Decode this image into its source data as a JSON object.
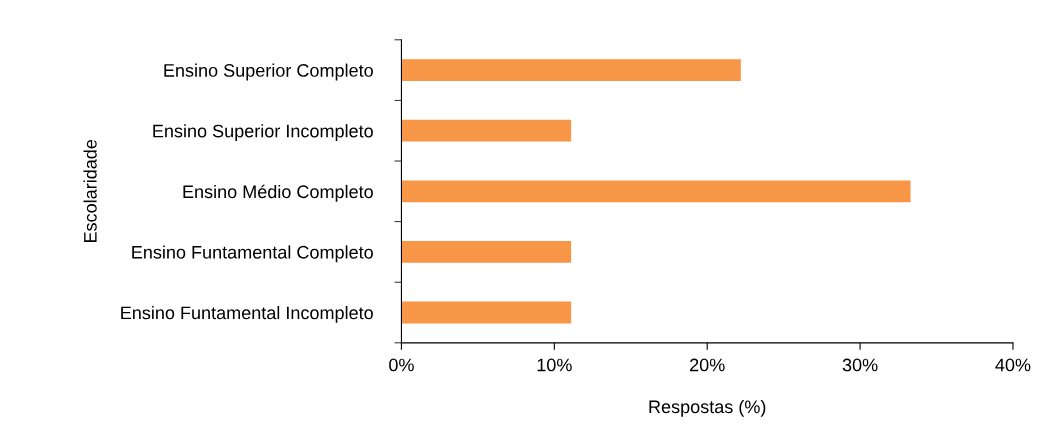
{
  "chart_data": {
    "type": "bar",
    "orientation": "horizontal",
    "categories": [
      "Ensino Superior Completo",
      "Ensino Superior Incompleto",
      "Ensino Médio Completo",
      "Ensino Funtamental Completo",
      "Ensino Funtamental Incompleto"
    ],
    "values": [
      22.2,
      11.1,
      33.3,
      11.1,
      11.1
    ],
    "color": "#f79646",
    "xlim": [
      0,
      40
    ],
    "xticks": [
      {
        "value": 0,
        "label": "0%"
      },
      {
        "value": 10,
        "label": "10%"
      },
      {
        "value": 20,
        "label": "20%"
      },
      {
        "value": 30,
        "label": "30%"
      },
      {
        "value": 40,
        "label": "40%"
      }
    ],
    "xlabel": "Respostas (%)",
    "ylabel": "Escolaridade",
    "grid": false
  }
}
